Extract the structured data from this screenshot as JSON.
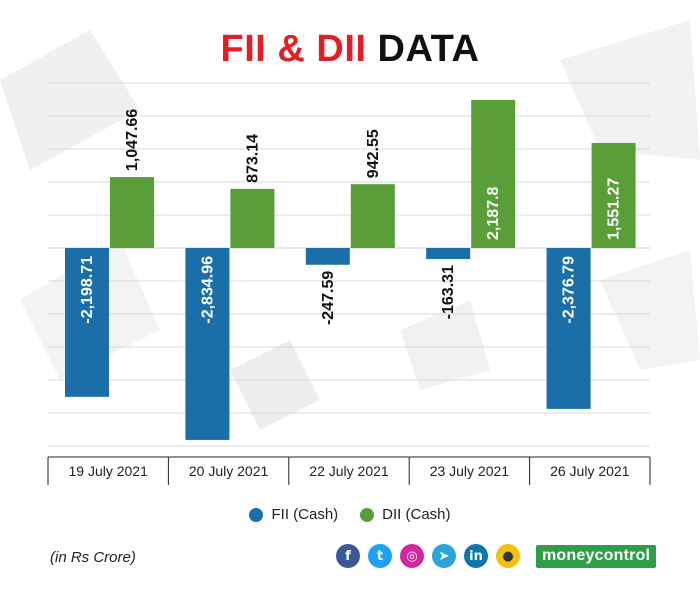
{
  "title": {
    "part1": "FII & DII",
    "part2": "DATA"
  },
  "legend": [
    {
      "label": "FII (Cash)",
      "color": "#1a6fa8"
    },
    {
      "label": "DII (Cash)",
      "color": "#5a9e3a"
    }
  ],
  "unit_note": "(in Rs Crore)",
  "brand": "moneycontrol",
  "social_icons": [
    "facebook-icon",
    "twitter-icon",
    "instagram-icon",
    "telegram-icon",
    "linkedin-icon",
    "koo-icon"
  ],
  "chart_data": {
    "type": "bar",
    "categories": [
      "19 July 2021",
      "20 July 2021",
      "22 July 2021",
      "23 July 2021",
      "26 July 2021"
    ],
    "series": [
      {
        "name": "FII (Cash)",
        "color": "#1a6fa8",
        "values": [
          -2198.71,
          -2834.96,
          -247.59,
          -163.31,
          -2376.79
        ],
        "labels": [
          "-2,198.71",
          "-2,834.96",
          "-247.59",
          "-163.31",
          "-2,376.79"
        ]
      },
      {
        "name": "DII (Cash)",
        "color": "#5a9e3a",
        "values": [
          1047.66,
          873.14,
          942.55,
          2187.8,
          1551.27
        ],
        "labels": [
          "1,047.66",
          "873.14",
          "942.55",
          "2,187.8",
          "1,551.27"
        ]
      }
    ],
    "grid": true,
    "legend_position": "bottom"
  }
}
